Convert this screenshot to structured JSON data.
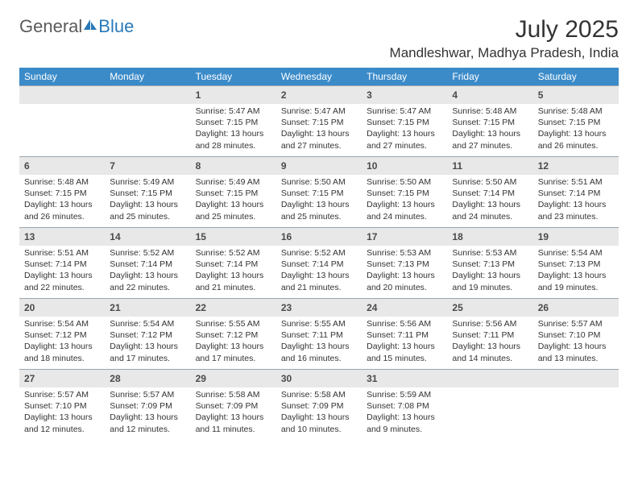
{
  "logo": {
    "text1": "General",
    "text2": "Blue"
  },
  "title": "July 2025",
  "location": "Mandleshwar, Madhya Pradesh, India",
  "colors": {
    "header_bg": "#3b8bc9",
    "header_text": "#ffffff",
    "daynum_bg": "#e8e8e8",
    "cell_border": "#9aa5ae",
    "body_text": "#333333",
    "logo_gray": "#5a5a5a",
    "logo_blue": "#2879b9"
  },
  "weekdays": [
    "Sunday",
    "Monday",
    "Tuesday",
    "Wednesday",
    "Thursday",
    "Friday",
    "Saturday"
  ],
  "first_weekday_index": 2,
  "days": [
    {
      "n": 1,
      "sunrise": "5:47 AM",
      "sunset": "7:15 PM",
      "daylight": "13 hours and 28 minutes."
    },
    {
      "n": 2,
      "sunrise": "5:47 AM",
      "sunset": "7:15 PM",
      "daylight": "13 hours and 27 minutes."
    },
    {
      "n": 3,
      "sunrise": "5:47 AM",
      "sunset": "7:15 PM",
      "daylight": "13 hours and 27 minutes."
    },
    {
      "n": 4,
      "sunrise": "5:48 AM",
      "sunset": "7:15 PM",
      "daylight": "13 hours and 27 minutes."
    },
    {
      "n": 5,
      "sunrise": "5:48 AM",
      "sunset": "7:15 PM",
      "daylight": "13 hours and 26 minutes."
    },
    {
      "n": 6,
      "sunrise": "5:48 AM",
      "sunset": "7:15 PM",
      "daylight": "13 hours and 26 minutes."
    },
    {
      "n": 7,
      "sunrise": "5:49 AM",
      "sunset": "7:15 PM",
      "daylight": "13 hours and 25 minutes."
    },
    {
      "n": 8,
      "sunrise": "5:49 AM",
      "sunset": "7:15 PM",
      "daylight": "13 hours and 25 minutes."
    },
    {
      "n": 9,
      "sunrise": "5:50 AM",
      "sunset": "7:15 PM",
      "daylight": "13 hours and 25 minutes."
    },
    {
      "n": 10,
      "sunrise": "5:50 AM",
      "sunset": "7:15 PM",
      "daylight": "13 hours and 24 minutes."
    },
    {
      "n": 11,
      "sunrise": "5:50 AM",
      "sunset": "7:14 PM",
      "daylight": "13 hours and 24 minutes."
    },
    {
      "n": 12,
      "sunrise": "5:51 AM",
      "sunset": "7:14 PM",
      "daylight": "13 hours and 23 minutes."
    },
    {
      "n": 13,
      "sunrise": "5:51 AM",
      "sunset": "7:14 PM",
      "daylight": "13 hours and 22 minutes."
    },
    {
      "n": 14,
      "sunrise": "5:52 AM",
      "sunset": "7:14 PM",
      "daylight": "13 hours and 22 minutes."
    },
    {
      "n": 15,
      "sunrise": "5:52 AM",
      "sunset": "7:14 PM",
      "daylight": "13 hours and 21 minutes."
    },
    {
      "n": 16,
      "sunrise": "5:52 AM",
      "sunset": "7:14 PM",
      "daylight": "13 hours and 21 minutes."
    },
    {
      "n": 17,
      "sunrise": "5:53 AM",
      "sunset": "7:13 PM",
      "daylight": "13 hours and 20 minutes."
    },
    {
      "n": 18,
      "sunrise": "5:53 AM",
      "sunset": "7:13 PM",
      "daylight": "13 hours and 19 minutes."
    },
    {
      "n": 19,
      "sunrise": "5:54 AM",
      "sunset": "7:13 PM",
      "daylight": "13 hours and 19 minutes."
    },
    {
      "n": 20,
      "sunrise": "5:54 AM",
      "sunset": "7:12 PM",
      "daylight": "13 hours and 18 minutes."
    },
    {
      "n": 21,
      "sunrise": "5:54 AM",
      "sunset": "7:12 PM",
      "daylight": "13 hours and 17 minutes."
    },
    {
      "n": 22,
      "sunrise": "5:55 AM",
      "sunset": "7:12 PM",
      "daylight": "13 hours and 17 minutes."
    },
    {
      "n": 23,
      "sunrise": "5:55 AM",
      "sunset": "7:11 PM",
      "daylight": "13 hours and 16 minutes."
    },
    {
      "n": 24,
      "sunrise": "5:56 AM",
      "sunset": "7:11 PM",
      "daylight": "13 hours and 15 minutes."
    },
    {
      "n": 25,
      "sunrise": "5:56 AM",
      "sunset": "7:11 PM",
      "daylight": "13 hours and 14 minutes."
    },
    {
      "n": 26,
      "sunrise": "5:57 AM",
      "sunset": "7:10 PM",
      "daylight": "13 hours and 13 minutes."
    },
    {
      "n": 27,
      "sunrise": "5:57 AM",
      "sunset": "7:10 PM",
      "daylight": "13 hours and 12 minutes."
    },
    {
      "n": 28,
      "sunrise": "5:57 AM",
      "sunset": "7:09 PM",
      "daylight": "13 hours and 12 minutes."
    },
    {
      "n": 29,
      "sunrise": "5:58 AM",
      "sunset": "7:09 PM",
      "daylight": "13 hours and 11 minutes."
    },
    {
      "n": 30,
      "sunrise": "5:58 AM",
      "sunset": "7:09 PM",
      "daylight": "13 hours and 10 minutes."
    },
    {
      "n": 31,
      "sunrise": "5:59 AM",
      "sunset": "7:08 PM",
      "daylight": "13 hours and 9 minutes."
    }
  ],
  "labels": {
    "sunrise": "Sunrise:",
    "sunset": "Sunset:",
    "daylight": "Daylight:"
  }
}
